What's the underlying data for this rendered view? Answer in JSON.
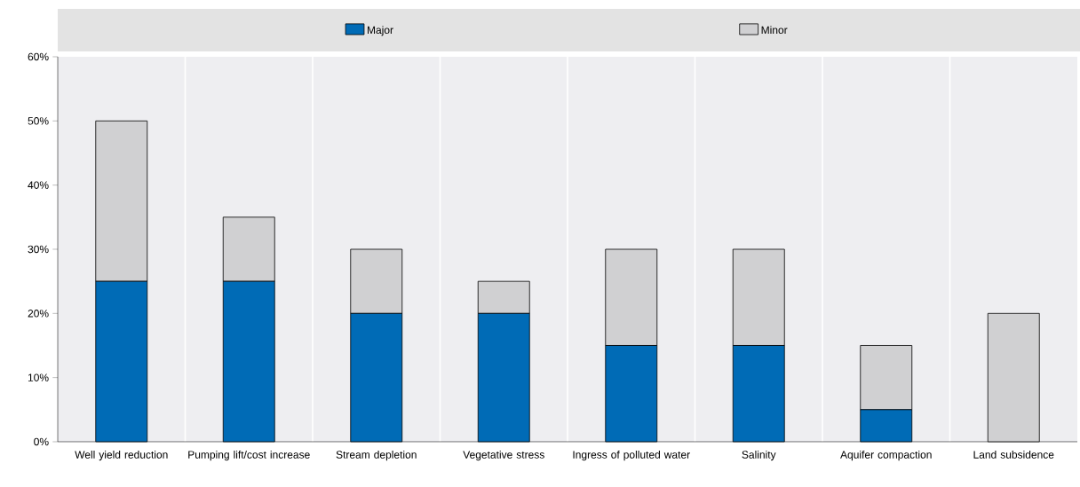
{
  "chart_data": {
    "type": "bar",
    "stacked": true,
    "categories": [
      "Well yield reduction",
      "Pumping lift/cost increase",
      "Stream depletion",
      "Vegetative stress",
      "Ingress of polluted water",
      "Salinity",
      "Aquifer compaction",
      "Land subsidence"
    ],
    "series": [
      {
        "name": "Major",
        "color": "#006bb6",
        "values": [
          25,
          25,
          20,
          20,
          15,
          15,
          5,
          0
        ]
      },
      {
        "name": "Minor",
        "color": "#d0d0d2",
        "values": [
          25,
          10,
          10,
          5,
          15,
          15,
          10,
          20
        ]
      }
    ],
    "ylim": [
      0,
      60
    ],
    "yticks": [
      {
        "value": 0,
        "label": "0%"
      },
      {
        "value": 10,
        "label": "10%"
      },
      {
        "value": 20,
        "label": "20%"
      },
      {
        "value": 30,
        "label": "30%"
      },
      {
        "value": 40,
        "label": "40%"
      },
      {
        "value": 50,
        "label": "50%"
      },
      {
        "value": 60,
        "label": "60%"
      }
    ],
    "grid": "x",
    "legend": "top"
  }
}
